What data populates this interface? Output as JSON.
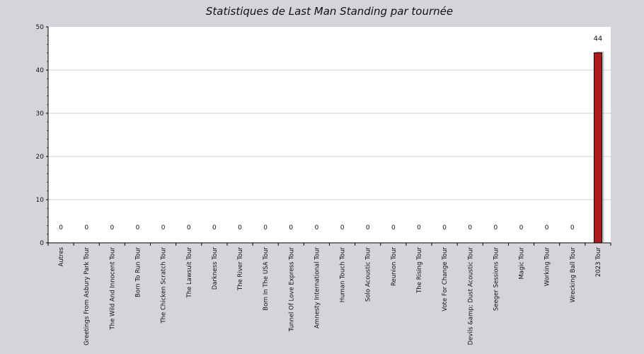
{
  "chart_data": {
    "type": "bar",
    "title": "Statistiques de Last Man Standing par tournée",
    "xlabel": "",
    "ylabel": "",
    "ylim": [
      0,
      50
    ],
    "yticks": [
      0,
      10,
      20,
      30,
      40,
      50
    ],
    "grid": true,
    "categories": [
      "Autres",
      "Greetings From Asbury Park Tour",
      "The Wild And Innocent Tour",
      "Born To Run Tour",
      "The Chicken Scratch Tour",
      "The Lawsuit Tour",
      "Darkness Tour",
      "The River Tour",
      "Born In The USA Tour",
      "Tunnel Of Love Express Tour",
      "Amnesty International Tour",
      "Human Touch Tour",
      "Solo Acoustic Tour",
      "Reunion Tour",
      "The Rising Tour",
      "Vote For Change Tour",
      "Devils &amp; Dust Acoustic Tour",
      "Seeger Sessions Tour",
      "Magic Tour",
      "Working Tour",
      "Wrecking Ball Tour",
      "2023 Tour"
    ],
    "values": [
      0,
      0,
      0,
      0,
      0,
      0,
      0,
      0,
      0,
      0,
      0,
      0,
      0,
      0,
      0,
      0,
      0,
      0,
      0,
      0,
      0,
      44
    ],
    "bar_color": "#b01c1c",
    "plot_background": "#ffffff",
    "page_background": "#d5d4d9"
  }
}
